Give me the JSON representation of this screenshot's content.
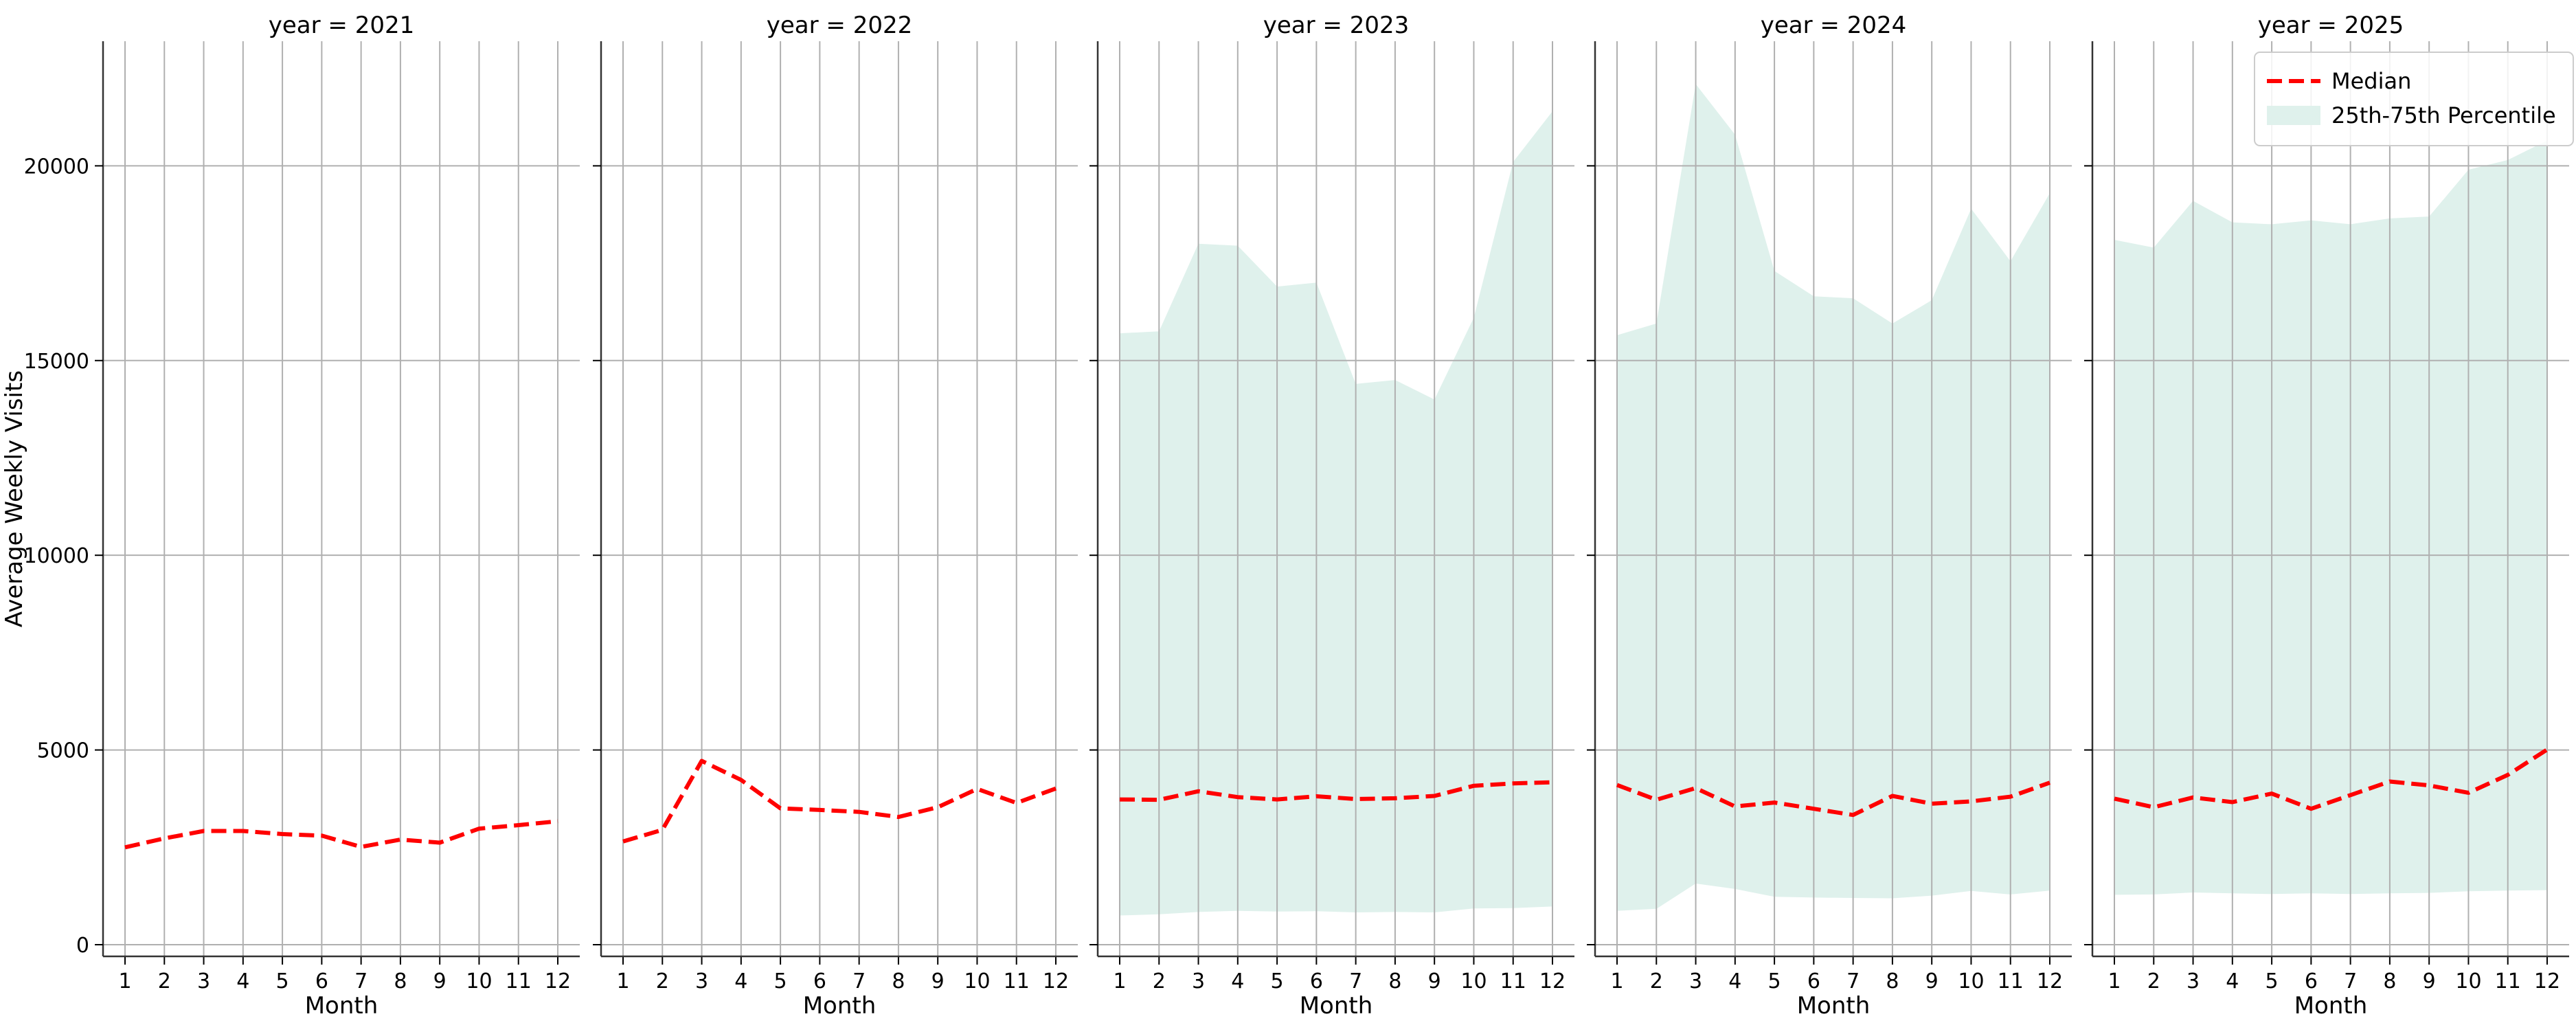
{
  "chart_data": {
    "type": "line",
    "ylabel": "Average Weekly Visits",
    "xlabel": "Month",
    "x": [
      1,
      2,
      3,
      4,
      5,
      6,
      7,
      8,
      9,
      10,
      11,
      12
    ],
    "ylim": [
      -300,
      23200
    ],
    "yticks": [
      0,
      5000,
      10000,
      15000,
      20000
    ],
    "grid": true,
    "legend": {
      "location": "top-right",
      "entries": [
        {
          "label": "Median",
          "style": "dashed-line",
          "color": "#ff0000"
        },
        {
          "label": "25th-75th Percentile",
          "style": "filled-band",
          "color": "#dff1ec"
        }
      ]
    },
    "colors": {
      "median": "#ff0000",
      "band": "#dff1ec",
      "grid": "#b0b0b0"
    },
    "panels": [
      {
        "title": "year = 2021",
        "median": [
          2500,
          2730,
          2920,
          2920,
          2840,
          2800,
          2510,
          2700,
          2620,
          2980,
          3070,
          3170
        ],
        "p25": null,
        "p75": null
      },
      {
        "title": "year = 2022",
        "median": [
          2650,
          2950,
          4720,
          4230,
          3500,
          3460,
          3410,
          3280,
          3530,
          4000,
          3640,
          4010
        ],
        "p25": null,
        "p75": null
      },
      {
        "title": "year = 2023",
        "median": [
          3730,
          3720,
          3940,
          3790,
          3730,
          3810,
          3740,
          3760,
          3820,
          4080,
          4140,
          4170
        ],
        "p25": [
          750,
          780,
          840,
          870,
          850,
          860,
          830,
          840,
          830,
          930,
          940,
          980
        ],
        "p75": [
          15700,
          15750,
          18000,
          17950,
          16900,
          17000,
          14400,
          14500,
          14000,
          16100,
          20100,
          21400
        ]
      },
      {
        "title": "year = 2024",
        "median": [
          4100,
          3720,
          4020,
          3550,
          3650,
          3490,
          3330,
          3820,
          3620,
          3680,
          3800,
          4160
        ],
        "p25": [
          870,
          920,
          1570,
          1430,
          1230,
          1210,
          1200,
          1190,
          1260,
          1380,
          1290,
          1390
        ],
        "p75": [
          15650,
          15950,
          22100,
          20800,
          17300,
          16650,
          16600,
          15950,
          16550,
          18900,
          17550,
          19300
        ]
      },
      {
        "title": "year = 2025",
        "median": [
          3750,
          3530,
          3780,
          3660,
          3880,
          3490,
          3840,
          4190,
          4090,
          3900,
          4360,
          5010
        ],
        "p25": [
          1280,
          1290,
          1340,
          1320,
          1300,
          1320,
          1300,
          1320,
          1330,
          1370,
          1390,
          1400
        ],
        "p75": [
          18100,
          17900,
          19100,
          18550,
          18500,
          18600,
          18500,
          18650,
          18700,
          19900,
          20150,
          20650
        ]
      }
    ]
  }
}
